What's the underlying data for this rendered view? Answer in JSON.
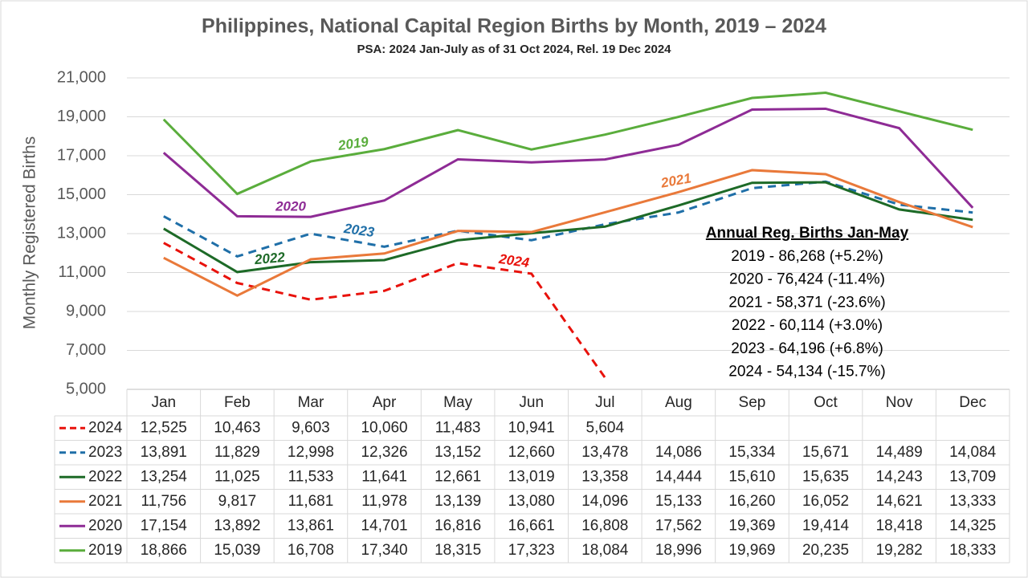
{
  "chart_data": {
    "type": "line",
    "title": "Philippines, National Capital Region Births by Month, 2019 – 2024",
    "subtitle": "PSA: 2024 Jan-July as of 31 Oct 2024, Rel. 19 Dec 2024",
    "y_label": "Monthly Registered Births",
    "categories": [
      "Jan",
      "Feb",
      "Mar",
      "Apr",
      "May",
      "Jun",
      "Jul",
      "Aug",
      "Sep",
      "Oct",
      "Nov",
      "Dec"
    ],
    "ylim": [
      5000,
      21000
    ],
    "yticks": [
      {
        "value": 5000,
        "label": "5,000"
      },
      {
        "value": 7000,
        "label": "7,000"
      },
      {
        "value": 9000,
        "label": "9,000"
      },
      {
        "value": 11000,
        "label": "11,000"
      },
      {
        "value": 13000,
        "label": "13,000"
      },
      {
        "value": 15000,
        "label": "15,000"
      },
      {
        "value": 17000,
        "label": "17,000"
      },
      {
        "value": 19000,
        "label": "19,000"
      },
      {
        "value": 21000,
        "label": "21,000"
      }
    ],
    "grid": true,
    "series": [
      {
        "name": "2024",
        "color": "#e8120c",
        "dashed": true,
        "values": [
          12525,
          10463,
          9603,
          10060,
          11483,
          10941,
          5604,
          null,
          null,
          null,
          null,
          null
        ],
        "value_labels": [
          "12,525",
          "10,463",
          "9,603",
          "10,060",
          "11,483",
          "10,941",
          "5,604",
          null,
          null,
          null,
          null,
          null
        ]
      },
      {
        "name": "2023",
        "color": "#1f6fa8",
        "dashed": true,
        "values": [
          13891,
          11829,
          12998,
          12326,
          13152,
          12660,
          13478,
          14086,
          15334,
          15671,
          14489,
          14084
        ],
        "value_labels": [
          "13,891",
          "11,829",
          "12,998",
          "12,326",
          "13,152",
          "12,660",
          "13,478",
          "14,086",
          "15,334",
          "15,671",
          "14,489",
          "14,084"
        ]
      },
      {
        "name": "2022",
        "color": "#1d6a27",
        "dashed": false,
        "values": [
          13254,
          11025,
          11533,
          11641,
          12661,
          13019,
          13358,
          14444,
          15610,
          15635,
          14243,
          13709
        ],
        "value_labels": [
          "13,254",
          "11,025",
          "11,533",
          "11,641",
          "12,661",
          "13,019",
          "13,358",
          "14,444",
          "15,610",
          "15,635",
          "14,243",
          "13,709"
        ]
      },
      {
        "name": "2021",
        "color": "#e9793a",
        "dashed": false,
        "values": [
          11756,
          9817,
          11681,
          11978,
          13139,
          13080,
          14096,
          15133,
          16260,
          16052,
          14621,
          13333
        ],
        "value_labels": [
          "11,756",
          "9,817",
          "11,681",
          "11,978",
          "13,139",
          "13,080",
          "14,096",
          "15,133",
          "16,260",
          "16,052",
          "14,621",
          "13,333"
        ]
      },
      {
        "name": "2020",
        "color": "#8e2b95",
        "dashed": false,
        "values": [
          17154,
          13892,
          13861,
          14701,
          16816,
          16661,
          16808,
          17562,
          19369,
          19414,
          18418,
          14325
        ],
        "value_labels": [
          "17,154",
          "13,892",
          "13,861",
          "14,701",
          "16,816",
          "16,661",
          "16,808",
          "17,562",
          "19,369",
          "19,414",
          "18,418",
          "14,325"
        ]
      },
      {
        "name": "2019",
        "color": "#5aad3c",
        "dashed": false,
        "values": [
          18866,
          15039,
          16708,
          17340,
          18315,
          17323,
          18084,
          18996,
          19969,
          20235,
          19282,
          18333
        ],
        "value_labels": [
          "18,866",
          "15,039",
          "16,708",
          "17,340",
          "18,315",
          "17,323",
          "18,084",
          "18,996",
          "19,969",
          "20,235",
          "19,282",
          "18,333"
        ]
      }
    ],
    "annotation": {
      "title": "Annual Reg. Births Jan-May",
      "lines": [
        "2019 - 86,268  (+5.2%)",
        "2020 - 76,424 (-11.4%)",
        "2021 - 58,371 (-23.6%)",
        "2022 - 60,114 (+3.0%)",
        "2023 - 64,196 (+6.8%)",
        "2024 - 54,134 (-15.7%)"
      ]
    }
  }
}
